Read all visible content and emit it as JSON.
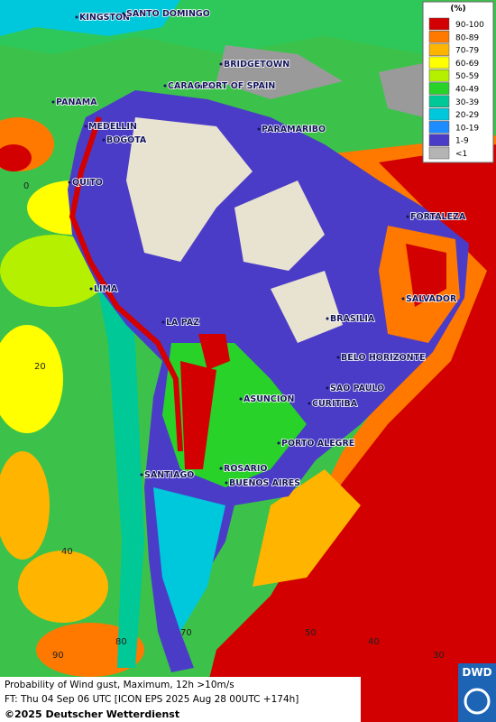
{
  "legend": {
    "title": "(%)",
    "items": [
      {
        "label": "90-100",
        "color": "#d20000"
      },
      {
        "label": "80-89",
        "color": "#ff7800"
      },
      {
        "label": "70-79",
        "color": "#ffb400"
      },
      {
        "label": "60-69",
        "color": "#ffff00"
      },
      {
        "label": "50-59",
        "color": "#b4f000"
      },
      {
        "label": "40-49",
        "color": "#28d228"
      },
      {
        "label": "30-39",
        "color": "#00c896"
      },
      {
        "label": "20-29",
        "color": "#00c8dc"
      },
      {
        "label": "10-19",
        "color": "#1e8cff"
      },
      {
        "label": "1-9",
        "color": "#4b3cc8"
      },
      {
        "label": "<1",
        "color": "#b4b4b4"
      }
    ]
  },
  "cities": [
    "KINGSTON",
    "SANTO DOMINGO",
    "BRIDGETOWN",
    "CARACAS",
    "PORT OF SPAIN",
    "PANAMA",
    "MEDELLIN",
    "BOGOTA",
    "PARAMARIBO",
    "QUITO",
    "FORTALEZA",
    "LIMA",
    "SALVADOR",
    "LA PAZ",
    "BRASILIA",
    "BELO HORIZONTE",
    "SAO PAULO",
    "ASUNCION",
    "CURITIBA",
    "PORTO ALEGRE",
    "ROSARIO",
    "SANTIAGO",
    "BUENOS AIRES"
  ],
  "grid_labels": [
    "0",
    "20",
    "40",
    "90",
    "80",
    "70",
    "50",
    "40",
    "30"
  ],
  "footer": {
    "line1": "Probability of Wind gust, Maximum, 12h >10m/s",
    "line2": "FT: Thu 04 Sep 06 UTC [ICON EPS 2025 Aug 28 00UTC +174h]",
    "copyright": "©2025 Deutscher Wetterdienst"
  },
  "logo": "DWD"
}
